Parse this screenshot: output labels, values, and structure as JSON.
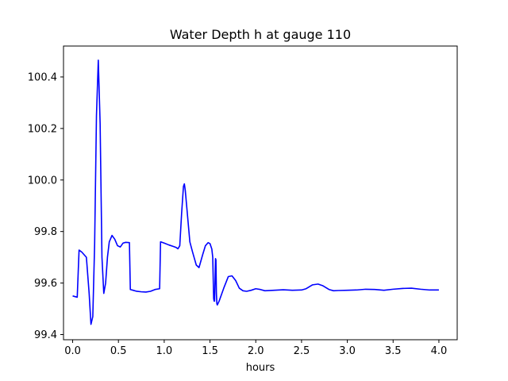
{
  "chart_data": {
    "type": "line",
    "title": "Water Depth h at gauge 110",
    "xlabel": "hours",
    "ylabel": "",
    "xlim": [
      -0.1,
      4.2
    ],
    "ylim": [
      99.38,
      100.52
    ],
    "xticks": [
      0.0,
      0.5,
      1.0,
      1.5,
      2.0,
      2.5,
      3.0,
      3.5,
      4.0
    ],
    "xtick_labels": [
      "0.0",
      "0.5",
      "1.0",
      "1.5",
      "2.0",
      "2.5",
      "3.0",
      "3.5",
      "4.0"
    ],
    "yticks": [
      99.4,
      99.6,
      99.8,
      100.0,
      100.2,
      100.4
    ],
    "ytick_labels": [
      "99.4",
      "99.6",
      "99.8",
      "100.0",
      "100.2",
      "100.4"
    ],
    "grid": false,
    "series": [
      {
        "color": "#0000ff",
        "x": [
          0.0,
          0.05,
          0.07,
          0.1,
          0.15,
          0.18,
          0.2,
          0.22,
          0.24,
          0.26,
          0.28,
          0.3,
          0.32,
          0.34,
          0.36,
          0.38,
          0.4,
          0.43,
          0.46,
          0.49,
          0.52,
          0.55,
          0.58,
          0.62,
          0.63,
          0.66,
          0.7,
          0.75,
          0.8,
          0.85,
          0.9,
          0.95,
          0.96,
          1.0,
          1.05,
          1.1,
          1.13,
          1.15,
          1.17,
          1.19,
          1.21,
          1.22,
          1.23,
          1.25,
          1.28,
          1.31,
          1.35,
          1.38,
          1.42,
          1.45,
          1.48,
          1.5,
          1.52,
          1.53,
          1.54,
          1.545,
          1.55,
          1.56,
          1.565,
          1.57,
          1.575,
          1.58,
          1.6,
          1.65,
          1.7,
          1.74,
          1.78,
          1.82,
          1.86,
          1.9,
          1.95,
          2.0,
          2.05,
          2.1,
          2.2,
          2.3,
          2.4,
          2.5,
          2.55,
          2.62,
          2.68,
          2.73,
          2.8,
          2.85,
          2.9,
          3.0,
          3.1,
          3.2,
          3.3,
          3.4,
          3.5,
          3.6,
          3.7,
          3.8,
          3.9,
          4.0
        ],
        "y": [
          99.55,
          99.545,
          99.728,
          99.72,
          99.7,
          99.56,
          99.44,
          99.47,
          99.75,
          100.25,
          100.465,
          100.22,
          99.7,
          99.56,
          99.6,
          99.7,
          99.76,
          99.785,
          99.77,
          99.745,
          99.74,
          99.755,
          99.758,
          99.757,
          99.575,
          99.572,
          99.568,
          99.566,
          99.565,
          99.568,
          99.575,
          99.578,
          99.76,
          99.755,
          99.748,
          99.742,
          99.738,
          99.733,
          99.745,
          99.87,
          99.975,
          99.985,
          99.96,
          99.88,
          99.76,
          99.72,
          99.67,
          99.66,
          99.71,
          99.745,
          99.757,
          99.753,
          99.732,
          99.7,
          99.54,
          99.53,
          99.53,
          99.695,
          99.69,
          99.56,
          99.52,
          99.515,
          99.53,
          99.58,
          99.625,
          99.628,
          99.61,
          99.58,
          99.57,
          99.568,
          99.572,
          99.578,
          99.575,
          99.57,
          99.572,
          99.574,
          99.572,
          99.573,
          99.578,
          99.593,
          99.596,
          99.59,
          99.575,
          99.57,
          99.571,
          99.572,
          99.573,
          99.576,
          99.575,
          99.572,
          99.576,
          99.579,
          99.58,
          99.576,
          99.573,
          99.573
        ]
      }
    ]
  }
}
